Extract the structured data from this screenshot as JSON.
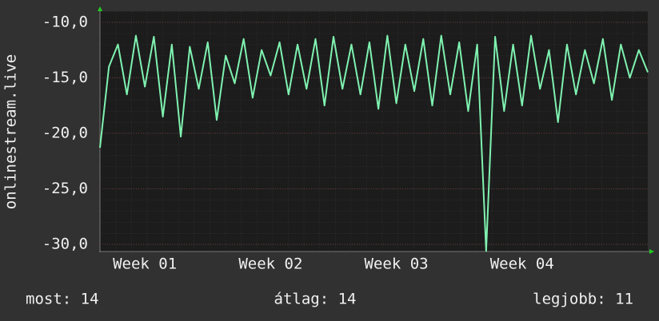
{
  "chart_data": {
    "type": "line",
    "ylabel": "onlinestream.live",
    "x": [
      0,
      0.5,
      1,
      1.5,
      2,
      2.5,
      3,
      3.5,
      4,
      4.5,
      5,
      5.5,
      6,
      6.5,
      7,
      7.5,
      8,
      8.5,
      9,
      9.5,
      10,
      10.5,
      11,
      11.5,
      12,
      12.5,
      13,
      13.5,
      14,
      14.5,
      15,
      15.5,
      16,
      16.5,
      17,
      17.5,
      18,
      18.5,
      19,
      19.5,
      20,
      20.5,
      21,
      21.5,
      22,
      22.5,
      23,
      23.5,
      24,
      24.5,
      25,
      25.5,
      26,
      26.5,
      27,
      27.5,
      28,
      28.5,
      29,
      29.5,
      30,
      30.5
    ],
    "series": [
      {
        "color": "#7ff2b0",
        "values": [
          -21.3,
          -14.0,
          -12.0,
          -16.5,
          -11.2,
          -15.8,
          -11.3,
          -18.5,
          -12.0,
          -20.3,
          -12.2,
          -16.0,
          -11.8,
          -18.8,
          -13.0,
          -15.5,
          -11.5,
          -16.8,
          -12.5,
          -14.8,
          -11.8,
          -16.5,
          -12.0,
          -16.0,
          -11.5,
          -17.5,
          -11.3,
          -16.0,
          -12.0,
          -16.5,
          -11.8,
          -17.8,
          -11.2,
          -17.3,
          -12.0,
          -16.2,
          -11.5,
          -17.5,
          -11.2,
          -16.5,
          -11.8,
          -18.0,
          -12.0,
          -30.6,
          -11.3,
          -18.0,
          -12.0,
          -17.5,
          -11.2,
          -16.0,
          -12.5,
          -19.0,
          -12.0,
          -16.5,
          -12.5,
          -15.5,
          -11.5,
          -17.0,
          -12.0,
          -15.0,
          -12.5,
          -14.5
        ]
      }
    ],
    "xlim": [
      0,
      30.5
    ],
    "xticks": [
      {
        "value": 2.5,
        "label": "Week 01"
      },
      {
        "value": 9.5,
        "label": "Week 02"
      },
      {
        "value": 16.5,
        "label": "Week 03"
      },
      {
        "value": 23.5,
        "label": "Week 04"
      }
    ],
    "ylim": [
      -30.65,
      -9.0
    ],
    "yticks": [
      {
        "value": -30,
        "label": "-30,0"
      },
      {
        "value": -25,
        "label": "-25,0"
      },
      {
        "value": -20,
        "label": "-20,0"
      },
      {
        "value": -15,
        "label": "-15,0"
      },
      {
        "value": -10,
        "label": "-10,0"
      }
    ],
    "grid": true,
    "stats": [
      "most: 14",
      "átlag: 14",
      "legjobb: 11"
    ]
  }
}
